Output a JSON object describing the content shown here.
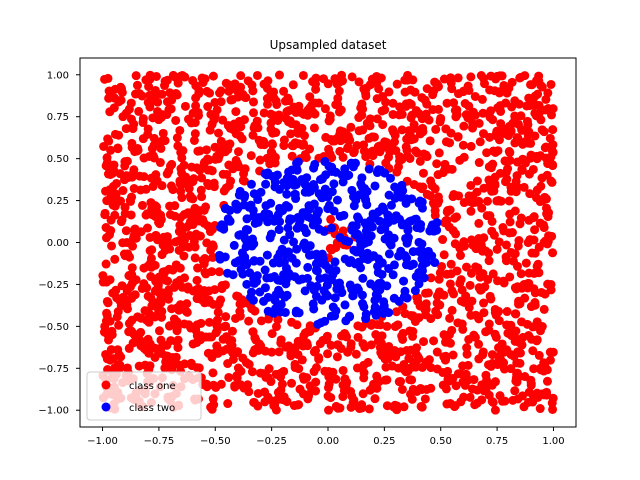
{
  "chart_data": {
    "type": "scatter",
    "title": "Upsampled dataset",
    "xlabel": "",
    "ylabel": "",
    "xlim": [
      -1.1,
      1.1
    ],
    "ylim": [
      -1.1,
      1.1
    ],
    "x_ticks": [
      "−1.00",
      "−0.75",
      "−0.50",
      "−0.25",
      "0.00",
      "0.25",
      "0.50",
      "0.75",
      "1.00"
    ],
    "y_ticks": [
      "1.00",
      "0.75",
      "0.50",
      "0.25",
      "0.00",
      "−0.25",
      "−0.50",
      "−0.75",
      "−1.00"
    ],
    "grid": false,
    "legend_position": "lower-left",
    "series": [
      {
        "name": "class one",
        "color": "#ff0000",
        "distribution": "uniform in square [-1,1]x[-1,1] outside a ring of radius 0.5, plus a small cluster near the origin",
        "x_range": [
          -1.0,
          1.0
        ],
        "y_range": [
          -1.0,
          1.0
        ],
        "inner_exclusion_radius": 0.5
      },
      {
        "name": "class two",
        "color": "#0000ff",
        "distribution": "ring-shaped cloud centered at origin",
        "center": [
          0.0,
          0.0
        ],
        "radius_range": [
          0.06,
          0.5
        ]
      }
    ]
  }
}
